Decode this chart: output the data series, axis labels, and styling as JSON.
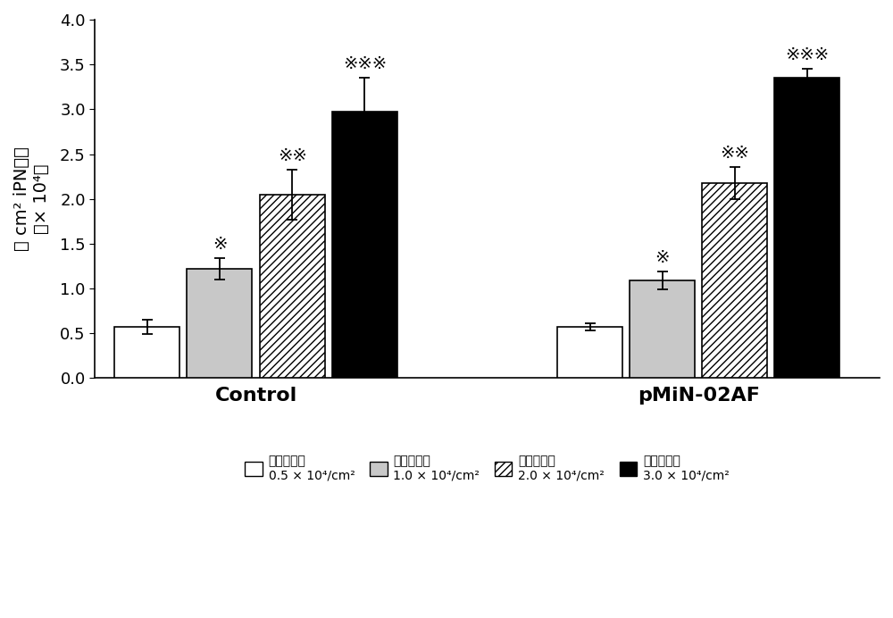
{
  "groups": [
    "Control",
    "pMiN-02AF"
  ],
  "densities": [
    "0.5",
    "1.0",
    "2.0",
    "3.0"
  ],
  "legend_label_line1": [
    "接种密度：",
    "接种密度：",
    "接种密度：",
    "接种密度："
  ],
  "legend_label_line2": [
    "0.5 × 10⁴/cm²",
    "1.0 × 10⁴/cm²",
    "2.0 × 10⁴/cm²",
    "3.0 × 10⁴/cm²"
  ],
  "values": {
    "Control": [
      0.57,
      1.22,
      2.05,
      2.97
    ],
    "pMiN-02AF": [
      0.57,
      1.09,
      2.18,
      3.35
    ]
  },
  "errors": {
    "Control": [
      0.08,
      0.12,
      0.28,
      0.38
    ],
    "pMiN-02AF": [
      0.04,
      0.1,
      0.18,
      0.1
    ]
  },
  "significance": {
    "Control": [
      "",
      "※",
      "※※",
      "※※※"
    ],
    "pMiN-02AF": [
      "",
      "※",
      "※※",
      "※※※"
    ]
  },
  "ylabel_line1": "每 cm² iPN数量",
  "ylabel_line2": "（× 10⁴）",
  "ylim": [
    0,
    4.0
  ],
  "yticks": [
    0,
    0.5,
    1.0,
    1.5,
    2.0,
    2.5,
    3.0,
    3.5,
    4.0
  ],
  "background_color": "#ffffff",
  "figsize": [
    10.0,
    6.92
  ],
  "dpi": 100,
  "group_centers": [
    0.45,
    1.55
  ]
}
